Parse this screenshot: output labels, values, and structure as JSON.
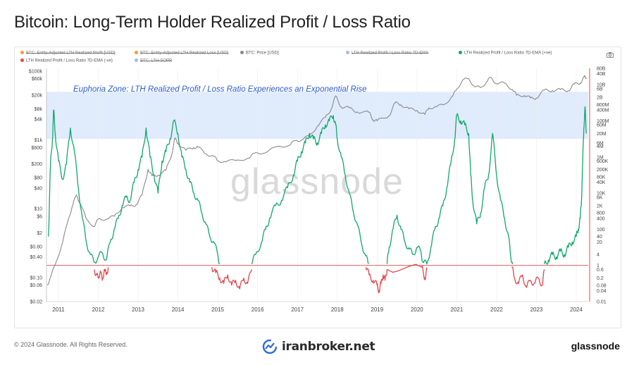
{
  "title": "Bitcoin: Long-Term Holder Realized Profit / Loss Ratio",
  "legend": [
    {
      "label": "BTC: Entity-Adjusted LTH Realized Profit [USD]",
      "color": "#f59c2f",
      "active": false
    },
    {
      "label": "BTC: Entity-Adjusted LTH Realized Loss [USD]",
      "color": "#f59c2f",
      "active": false
    },
    {
      "label": "BTC: Price [USD]",
      "color": "#888888",
      "active": true
    },
    {
      "label": "LTH Realized Profit / Loss Ratio 7D-EMA",
      "color": "#a5b8ea",
      "active": false
    },
    {
      "label": "LTH Realized Profit / Loss Ratio 7D-EMA (+ve)",
      "color": "#11a86a",
      "active": true
    },
    {
      "label": "LTH Realized Profit / Loss Ratio 7D-EMA (-ve)",
      "color": "#e8454a",
      "active": true
    },
    {
      "label": "BTC: LTH-SOPR",
      "color": "#a5b8ea",
      "active": false
    }
  ],
  "annotation": "Euphoria Zone: LTH Realized Profit / Loss Ratio Experiences an Exponential Rise",
  "watermark": "glassnode",
  "footer": {
    "copyright": "© 2024 Glassnode. All Rights Reserved.",
    "partner": "iranbroker.net",
    "brand": "glassnode"
  },
  "colors": {
    "price": "#8a8a8a",
    "positive": "#11a86a",
    "negative": "#e8454a",
    "zone": "#dbe7fb",
    "annotation": "#2d5bd1",
    "threshold": "#e8454a"
  },
  "chart_data": {
    "type": "line",
    "x_ticks": [
      "2011",
      "2012",
      "2013",
      "2014",
      "2015",
      "2016",
      "2017",
      "2018",
      "2019",
      "2020",
      "2021",
      "2022",
      "2023",
      "2024"
    ],
    "x_range": [
      2010.7,
      2024.3
    ],
    "y_left": {
      "label": "BTC: Price [USD]",
      "scale": "log",
      "range": [
        0.02,
        120000
      ],
      "ticks": [
        "$100k",
        "$60k",
        "$20k",
        "$8k",
        "$4k",
        "$1k",
        "$600",
        "$200",
        "$80",
        "$40",
        "$10",
        "$6",
        "$2",
        "$0.80",
        "$0.40",
        "$0.10",
        "$0.06",
        "$0.02"
      ]
    },
    "y_right": {
      "label": "LTH Realized Profit / Loss Ratio",
      "scale": "log",
      "range": [
        0.01,
        80000000000
      ],
      "ticks": [
        "80B",
        "40B",
        "10B",
        "6B",
        "2B",
        "800M",
        "400M",
        "100M",
        "60M",
        "20M",
        "6M",
        "4M",
        "1M",
        "600K",
        "200K",
        "80K",
        "40K",
        "10K",
        "6K",
        "2K",
        "800",
        "400",
        "100",
        "40",
        "20",
        "4",
        "1",
        "0.6",
        "0.2",
        "0.08",
        "0.04",
        "0.01"
      ]
    },
    "euphoria_zone_right": [
      10000000,
      4000000000
    ],
    "threshold_right": 1,
    "series": [
      {
        "name": "BTC: Price [USD]",
        "axis": "left",
        "points": [
          [
            2010.72,
            0.06
          ],
          [
            2010.8,
            0.1
          ],
          [
            2010.95,
            0.3
          ],
          [
            2011.1,
            1
          ],
          [
            2011.25,
            5
          ],
          [
            2011.35,
            12
          ],
          [
            2011.45,
            25
          ],
          [
            2011.55,
            14
          ],
          [
            2011.7,
            5
          ],
          [
            2011.9,
            3
          ],
          [
            2012.0,
            5
          ],
          [
            2012.2,
            5
          ],
          [
            2012.4,
            6
          ],
          [
            2012.6,
            11
          ],
          [
            2012.8,
            12
          ],
          [
            2012.95,
            13
          ],
          [
            2013.1,
            25
          ],
          [
            2013.25,
            140
          ],
          [
            2013.35,
            90
          ],
          [
            2013.5,
            95
          ],
          [
            2013.7,
            130
          ],
          [
            2013.85,
            400
          ],
          [
            2013.92,
            1100
          ],
          [
            2014.0,
            800
          ],
          [
            2014.2,
            500
          ],
          [
            2014.4,
            600
          ],
          [
            2014.5,
            620
          ],
          [
            2014.7,
            400
          ],
          [
            2014.9,
            330
          ],
          [
            2015.0,
            250
          ],
          [
            2015.2,
            230
          ],
          [
            2015.5,
            260
          ],
          [
            2015.8,
            300
          ],
          [
            2015.95,
            430
          ],
          [
            2016.2,
            420
          ],
          [
            2016.5,
            650
          ],
          [
            2016.8,
            700
          ],
          [
            2016.95,
            950
          ],
          [
            2017.1,
            1000
          ],
          [
            2017.3,
            1300
          ],
          [
            2017.5,
            2500
          ],
          [
            2017.7,
            4500
          ],
          [
            2017.85,
            8000
          ],
          [
            2017.96,
            19000
          ],
          [
            2018.1,
            9000
          ],
          [
            2018.3,
            8500
          ],
          [
            2018.5,
            6500
          ],
          [
            2018.8,
            6300
          ],
          [
            2018.9,
            3800
          ],
          [
            2019.0,
            3600
          ],
          [
            2019.3,
            5000
          ],
          [
            2019.45,
            12000
          ],
          [
            2019.6,
            10500
          ],
          [
            2019.8,
            8000
          ],
          [
            2020.0,
            7200
          ],
          [
            2020.2,
            5500
          ],
          [
            2020.3,
            8500
          ],
          [
            2020.5,
            9200
          ],
          [
            2020.7,
            11000
          ],
          [
            2020.9,
            19000
          ],
          [
            2021.0,
            30000
          ],
          [
            2021.15,
            55000
          ],
          [
            2021.3,
            60000
          ],
          [
            2021.45,
            35000
          ],
          [
            2021.6,
            33000
          ],
          [
            2021.75,
            48000
          ],
          [
            2021.85,
            66000
          ],
          [
            2022.0,
            43000
          ],
          [
            2022.2,
            45000
          ],
          [
            2022.4,
            29000
          ],
          [
            2022.5,
            20000
          ],
          [
            2022.7,
            19500
          ],
          [
            2022.85,
            16500
          ],
          [
            2023.0,
            16500
          ],
          [
            2023.2,
            28000
          ],
          [
            2023.4,
            27000
          ],
          [
            2023.6,
            29000
          ],
          [
            2023.8,
            27000
          ],
          [
            2023.95,
            42000
          ],
          [
            2024.1,
            45000
          ],
          [
            2024.2,
            68000
          ],
          [
            2024.25,
            64000
          ]
        ]
      },
      {
        "name": "LTH Realized Profit / Loss Ratio 7D-EMA (+ve)",
        "axis": "right",
        "points": [
          [
            2010.75,
            40
          ],
          [
            2010.8,
            400000
          ],
          [
            2010.85,
            10000000
          ],
          [
            2010.88,
            400000000
          ],
          [
            2010.92,
            20000000
          ],
          [
            2011.0,
            600000
          ],
          [
            2011.1,
            60000
          ],
          [
            2011.2,
            400000
          ],
          [
            2011.3,
            40000000
          ],
          [
            2011.4,
            2000000
          ],
          [
            2011.5,
            20000
          ],
          [
            2011.6,
            400
          ],
          [
            2011.7,
            20
          ],
          [
            2011.8,
            4
          ],
          [
            2011.9,
            1.5
          ],
          [
            2012.0,
            3
          ],
          [
            2012.1,
            5
          ],
          [
            2012.2,
            2
          ],
          [
            2012.3,
            20
          ],
          [
            2012.4,
            100
          ],
          [
            2012.5,
            400
          ],
          [
            2012.6,
            2000
          ],
          [
            2012.7,
            6000
          ],
          [
            2012.8,
            4000
          ],
          [
            2012.9,
            40000
          ],
          [
            2013.0,
            200000
          ],
          [
            2013.1,
            1000000
          ],
          [
            2013.2,
            40000000
          ],
          [
            2013.3,
            1000000
          ],
          [
            2013.4,
            100000
          ],
          [
            2013.5,
            10000
          ],
          [
            2013.6,
            600000
          ],
          [
            2013.7,
            2000000
          ],
          [
            2013.8,
            10000000
          ],
          [
            2013.9,
            100000000
          ],
          [
            2014.0,
            20000000
          ],
          [
            2014.1,
            1000000
          ],
          [
            2014.2,
            200000
          ],
          [
            2014.3,
            40000
          ],
          [
            2014.4,
            10000
          ],
          [
            2014.5,
            4000
          ],
          [
            2014.6,
            800
          ],
          [
            2014.7,
            200
          ],
          [
            2014.8,
            40
          ],
          [
            2014.9,
            20
          ],
          [
            2015.0,
            4
          ],
          [
            2015.05,
            1.2
          ]
        ]
      },
      {
        "name": "LTH Realized Profit / Loss Ratio 7D-EMA (+ve)",
        "axis": "right",
        "points": [
          [
            2015.85,
            1.2
          ],
          [
            2015.95,
            4
          ],
          [
            2016.1,
            20
          ],
          [
            2016.2,
            100
          ],
          [
            2016.3,
            400
          ],
          [
            2016.45,
            2000
          ],
          [
            2016.6,
            4000
          ],
          [
            2016.75,
            20000
          ],
          [
            2016.9,
            100000
          ],
          [
            2017.0,
            600000
          ],
          [
            2017.1,
            2000000
          ],
          [
            2017.2,
            6000000
          ],
          [
            2017.3,
            20000000
          ],
          [
            2017.4,
            10000000
          ],
          [
            2017.5,
            6000000
          ],
          [
            2017.6,
            20000000
          ],
          [
            2017.7,
            60000000
          ],
          [
            2017.8,
            100000000
          ],
          [
            2017.9,
            200000000
          ],
          [
            2017.96,
            60000000
          ],
          [
            2018.0,
            10000000
          ],
          [
            2018.1,
            1000000
          ],
          [
            2018.2,
            100000
          ],
          [
            2018.3,
            10000
          ],
          [
            2018.4,
            1000
          ],
          [
            2018.5,
            200
          ],
          [
            2018.6,
            20
          ],
          [
            2018.7,
            4
          ],
          [
            2018.78,
            1.2
          ]
        ]
      },
      {
        "name": "LTH Realized Profit / Loss Ratio 7D-EMA (+ve)",
        "axis": "right",
        "points": [
          [
            2019.25,
            1.2
          ],
          [
            2019.3,
            10
          ],
          [
            2019.4,
            100
          ],
          [
            2019.5,
            600
          ],
          [
            2019.6,
            100
          ],
          [
            2019.7,
            20
          ],
          [
            2019.8,
            8
          ],
          [
            2019.9,
            4
          ],
          [
            2020.0,
            10
          ],
          [
            2020.1,
            6
          ],
          [
            2020.15,
            1.5
          ],
          [
            2020.25,
            1.2
          ],
          [
            2020.35,
            10
          ],
          [
            2020.45,
            100
          ],
          [
            2020.55,
            400
          ],
          [
            2020.65,
            2000
          ],
          [
            2020.75,
            20000
          ],
          [
            2020.85,
            400000
          ],
          [
            2020.95,
            10000000
          ],
          [
            2021.0,
            200000000
          ],
          [
            2021.1,
            100000000
          ],
          [
            2021.2,
            60000000
          ],
          [
            2021.3,
            20000000
          ],
          [
            2021.35,
            100000
          ],
          [
            2021.4,
            4000
          ],
          [
            2021.5,
            200
          ],
          [
            2021.6,
            800
          ],
          [
            2021.7,
            20000
          ],
          [
            2021.8,
            100000
          ],
          [
            2021.9,
            20000000
          ],
          [
            2022.0,
            100000
          ],
          [
            2022.1,
            4000
          ],
          [
            2022.2,
            400
          ],
          [
            2022.3,
            40
          ],
          [
            2022.35,
            4
          ],
          [
            2022.4,
            1.2
          ]
        ]
      },
      {
        "name": "LTH Realized Profit / Loss Ratio 7D-EMA (+ve)",
        "axis": "right",
        "points": [
          [
            2023.2,
            1.2
          ],
          [
            2023.3,
            2
          ],
          [
            2023.4,
            4
          ],
          [
            2023.5,
            3
          ],
          [
            2023.6,
            6
          ],
          [
            2023.7,
            4
          ],
          [
            2023.8,
            10
          ],
          [
            2023.9,
            20
          ],
          [
            2024.0,
            40
          ],
          [
            2024.05,
            100
          ],
          [
            2024.1,
            400
          ],
          [
            2024.13,
            4000
          ],
          [
            2024.16,
            400000
          ],
          [
            2024.19,
            40000000
          ],
          [
            2024.22,
            600000000
          ],
          [
            2024.25,
            20000000
          ]
        ]
      },
      {
        "name": "LTH Realized Profit / Loss Ratio 7D-EMA (-ve)",
        "axis": "right",
        "points": [
          [
            2011.9,
            0.6
          ],
          [
            2011.95,
            0.3
          ],
          [
            2012.0,
            0.2
          ],
          [
            2012.05,
            0.5
          ],
          [
            2012.1,
            0.15
          ],
          [
            2012.15,
            0.6
          ],
          [
            2012.2,
            0.3
          ],
          [
            2012.25,
            0.8
          ]
        ]
      },
      {
        "name": "LTH Realized Profit / Loss Ratio 7D-EMA (-ve)",
        "axis": "right",
        "points": [
          [
            2014.85,
            0.8
          ],
          [
            2014.95,
            0.4
          ],
          [
            2015.05,
            0.2
          ],
          [
            2015.15,
            0.1
          ],
          [
            2015.25,
            0.3
          ],
          [
            2015.35,
            0.08
          ],
          [
            2015.45,
            0.15
          ],
          [
            2015.55,
            0.05
          ],
          [
            2015.65,
            0.2
          ],
          [
            2015.75,
            0.1
          ],
          [
            2015.85,
            0.6
          ]
        ]
      },
      {
        "name": "LTH Realized Profit / Loss Ratio 7D-EMA (-ve)",
        "axis": "right",
        "points": [
          [
            2018.72,
            0.8
          ],
          [
            2018.8,
            0.3
          ],
          [
            2018.9,
            0.15
          ],
          [
            2019.0,
            0.08
          ],
          [
            2019.05,
            0.04
          ],
          [
            2019.1,
            0.1
          ],
          [
            2019.15,
            0.3
          ],
          [
            2019.2,
            0.15
          ],
          [
            2019.25,
            0.6
          ],
          [
            2020.12,
            0.8
          ],
          [
            2020.2,
            0.2
          ],
          [
            2020.25,
            0.6
          ]
        ]
      },
      {
        "name": "LTH Realized Profit / Loss Ratio 7D-EMA (-ve)",
        "axis": "right",
        "points": [
          [
            2022.38,
            0.8
          ],
          [
            2022.45,
            0.2
          ],
          [
            2022.55,
            0.1
          ],
          [
            2022.65,
            0.3
          ],
          [
            2022.75,
            0.06
          ],
          [
            2022.85,
            0.15
          ],
          [
            2022.95,
            0.1
          ],
          [
            2023.05,
            0.2
          ],
          [
            2023.15,
            0.08
          ],
          [
            2023.2,
            0.6
          ]
        ]
      }
    ]
  }
}
